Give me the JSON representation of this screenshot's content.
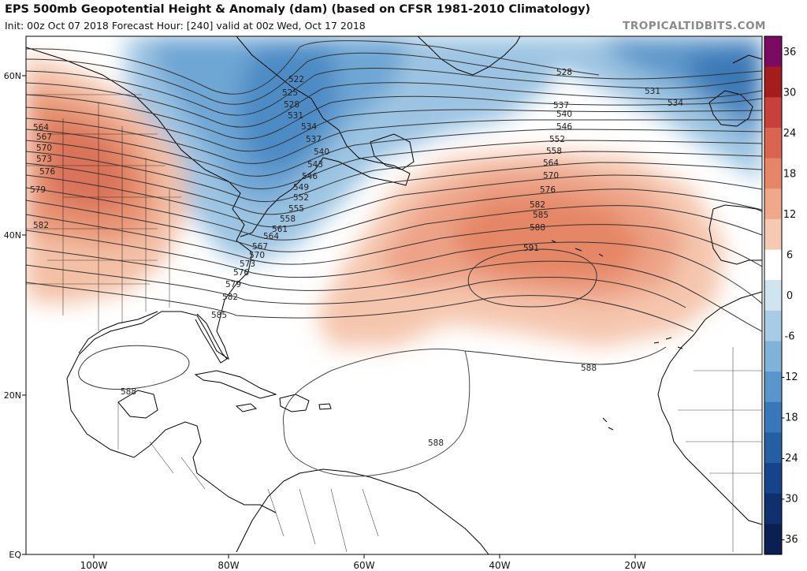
{
  "header": {
    "title": "EPS 500mb Geopotential Height & Anomaly (dam) (based on CFSR 1981-2010 Climatology)",
    "subtitle": "Init: 00z Oct 07 2018   Forecast Hour: [240]   valid at 00z Wed, Oct 17 2018",
    "credit": "TROPICALTIDBITS.COM"
  },
  "axes": {
    "lat_labels": [
      "60N",
      "40N",
      "20N",
      "EQ"
    ],
    "lon_labels": [
      "100W",
      "80W",
      "60W",
      "40W",
      "20W"
    ]
  },
  "colorbar": {
    "ticks": [
      "36",
      "30",
      "24",
      "18",
      "12",
      "6",
      "0",
      "-6",
      "-12",
      "-18",
      "-24",
      "-30",
      "-36"
    ],
    "colors": [
      "#7b0a63",
      "#a51c1c",
      "#c8403a",
      "#d9644f",
      "#e68667",
      "#efa88a",
      "#f6c9b3",
      "#ffffff",
      "#cfe3f0",
      "#a9cce6",
      "#7fb3da",
      "#5896cb",
      "#3878b8",
      "#245ea3",
      "#16448a",
      "#0f2f6e",
      "#0a1f52"
    ]
  },
  "contour_labels": [
    "522",
    "525",
    "528",
    "531",
    "534",
    "537",
    "540",
    "543",
    "546",
    "549",
    "552",
    "555",
    "558",
    "561",
    "564",
    "567",
    "570",
    "573",
    "576",
    "579",
    "582",
    "585",
    "588",
    "591"
  ],
  "map_labels": {
    "west": [
      "564",
      "567",
      "570",
      "573",
      "576",
      "579",
      "582"
    ],
    "coast": [
      "522",
      "525",
      "528",
      "531",
      "534",
      "537",
      "540",
      "543",
      "546",
      "549",
      "552",
      "555",
      "558",
      "561",
      "564",
      "567",
      "570",
      "573",
      "576",
      "579",
      "582",
      "585"
    ],
    "east": [
      "528",
      "537",
      "540",
      "546",
      "552",
      "558",
      "564",
      "570",
      "576",
      "582",
      "585",
      "588",
      "591"
    ],
    "northeast": [
      "531",
      "534"
    ],
    "ridge": [
      "588",
      "588",
      "588"
    ]
  },
  "colors": {
    "land_border": "#000000",
    "contour": "#333333"
  }
}
